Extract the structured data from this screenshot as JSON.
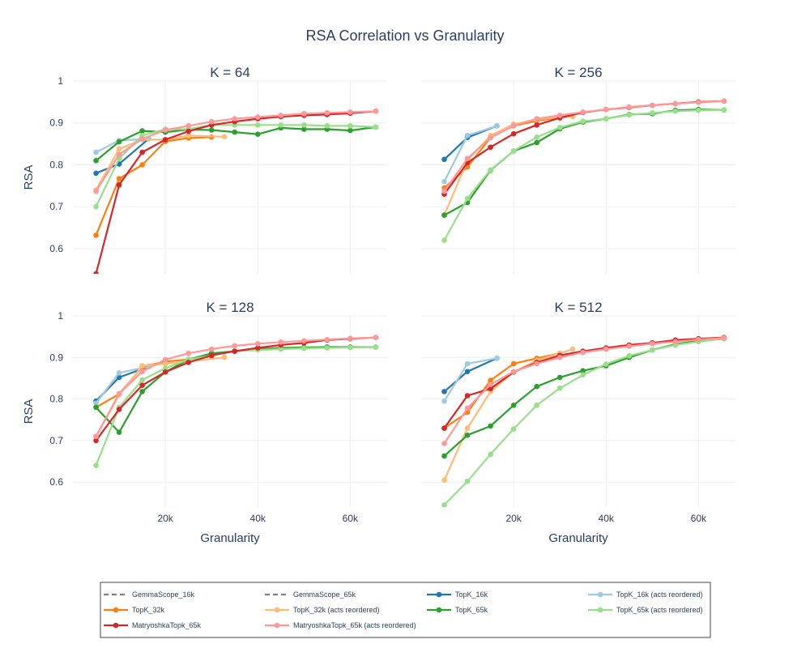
{
  "chart_data": {
    "type": "line",
    "title": "RSA Correlation vs Granularity",
    "xlabel": "Granularity",
    "ylabel": "RSA",
    "x_ticks": [
      20000,
      40000,
      60000
    ],
    "x_tick_labels": [
      "20k",
      "40k",
      "60k"
    ],
    "y_ticks": [
      0.6,
      0.7,
      0.8,
      0.9,
      1
    ],
    "y_tick_labels": [
      "0.6",
      "0.7",
      "0.8",
      "0.9",
      "1"
    ],
    "xlim": [
      0,
      68000
    ],
    "ylim": [
      0.54,
      1.0
    ],
    "legend": [
      {
        "name": "GemmaScope_16k",
        "color": "#7f7f7f",
        "style": "dash"
      },
      {
        "name": "GemmaScope_65k",
        "color": "#7f7f7f",
        "style": "dash"
      },
      {
        "name": "TopK_16k",
        "color": "#1f77b4",
        "style": "solid"
      },
      {
        "name": "TopK_16k (acts reordered)",
        "color": "#9ecae1",
        "style": "solid"
      },
      {
        "name": "TopK_32k",
        "color": "#ff7f0e",
        "style": "solid"
      },
      {
        "name": "TopK_32k (acts reordered)",
        "color": "#ffbb78",
        "style": "solid"
      },
      {
        "name": "TopK_65k",
        "color": "#2ca02c",
        "style": "solid"
      },
      {
        "name": "TopK_65k (acts reordered)",
        "color": "#98df8a",
        "style": "solid"
      },
      {
        "name": "MatryoshkaTopk_65k",
        "color": "#d62728",
        "style": "solid"
      },
      {
        "name": "MatryoshkaTopk_65k (acts reordered)",
        "color": "#ff9896",
        "style": "solid"
      }
    ],
    "panels": [
      {
        "title": "K = 64",
        "series": [
          {
            "name": "TopK_16k",
            "color": "#1f77b4",
            "x": [
              5000,
              10000,
              16384
            ],
            "y": [
              0.78,
              0.802,
              0.862
            ]
          },
          {
            "name": "TopK_16k (acts reordered)",
            "color": "#9ecae1",
            "x": [
              5000,
              10000,
              16384
            ],
            "y": [
              0.83,
              0.858,
              0.862
            ]
          },
          {
            "name": "TopK_32k",
            "color": "#ff7f0e",
            "x": [
              5000,
              10000,
              15000,
              20000,
              25000,
              30000
            ],
            "y": [
              0.632,
              0.767,
              0.8,
              0.856,
              0.864,
              0.866
            ]
          },
          {
            "name": "TopK_32k (acts reordered)",
            "color": "#ffbb78",
            "x": [
              5000,
              10000,
              15000,
              20000,
              25000,
              32768
            ],
            "y": [
              0.74,
              0.838,
              0.86,
              0.86,
              0.87,
              0.867
            ]
          },
          {
            "name": "TopK_65k",
            "color": "#2ca02c",
            "x": [
              5000,
              10000,
              15000,
              20000,
              25000,
              30000,
              35000,
              40000,
              45000,
              50000,
              55000,
              60000,
              65536
            ],
            "y": [
              0.81,
              0.855,
              0.881,
              0.878,
              0.884,
              0.883,
              0.878,
              0.873,
              0.888,
              0.885,
              0.885,
              0.882,
              0.89
            ]
          },
          {
            "name": "TopK_65k (acts reordered)",
            "color": "#98df8a",
            "x": [
              5000,
              10000,
              15000,
              20000,
              25000,
              30000,
              35000,
              40000,
              45000,
              50000,
              55000,
              60000,
              65536
            ],
            "y": [
              0.7,
              0.815,
              0.87,
              0.885,
              0.885,
              0.895,
              0.895,
              0.895,
              0.895,
              0.895,
              0.893,
              0.893,
              0.89
            ]
          },
          {
            "name": "MatryoshkaTopk_65k",
            "color": "#d62728",
            "x": [
              5000,
              10000,
              15000,
              20000,
              25000,
              30000,
              35000,
              40000,
              45000,
              50000,
              55000,
              60000,
              65536
            ],
            "y": [
              0.54,
              0.752,
              0.83,
              0.86,
              0.88,
              0.895,
              0.903,
              0.91,
              0.915,
              0.918,
              0.92,
              0.923,
              0.928
            ]
          },
          {
            "name": "MatryoshkaTopk_65k (acts reordered)",
            "color": "#ff9896",
            "x": [
              5000,
              10000,
              15000,
              20000,
              25000,
              30000,
              35000,
              40000,
              45000,
              50000,
              55000,
              60000,
              65536
            ],
            "y": [
              0.737,
              0.825,
              0.862,
              0.883,
              0.893,
              0.903,
              0.91,
              0.914,
              0.918,
              0.922,
              0.924,
              0.926,
              0.928
            ]
          }
        ]
      },
      {
        "title": "K = 256",
        "series": [
          {
            "name": "TopK_16k",
            "color": "#1f77b4",
            "x": [
              5000,
              10000,
              16384
            ],
            "y": [
              0.813,
              0.865,
              0.893
            ]
          },
          {
            "name": "TopK_16k (acts reordered)",
            "color": "#9ecae1",
            "x": [
              5000,
              10000,
              16384
            ],
            "y": [
              0.76,
              0.87,
              0.893
            ]
          },
          {
            "name": "TopK_32k",
            "color": "#ff7f0e",
            "x": [
              5000,
              10000,
              15000,
              20000,
              25000,
              30000
            ],
            "y": [
              0.745,
              0.795,
              0.865,
              0.893,
              0.905,
              0.913
            ]
          },
          {
            "name": "TopK_32k (acts reordered)",
            "color": "#ffbb78",
            "x": [
              5000,
              10000,
              15000,
              20000,
              25000,
              30000,
              32768
            ],
            "y": [
              0.68,
              0.81,
              0.87,
              0.897,
              0.908,
              0.915,
              0.915
            ]
          },
          {
            "name": "TopK_65k",
            "color": "#2ca02c",
            "x": [
              5000,
              10000,
              15000,
              20000,
              25000,
              30000,
              35000,
              40000,
              45000,
              50000,
              55000,
              60000,
              65536
            ],
            "y": [
              0.68,
              0.71,
              0.787,
              0.833,
              0.853,
              0.886,
              0.902,
              0.91,
              0.92,
              0.922,
              0.93,
              0.932,
              0.931
            ]
          },
          {
            "name": "TopK_65k (acts reordered)",
            "color": "#98df8a",
            "x": [
              5000,
              10000,
              15000,
              20000,
              25000,
              30000,
              35000,
              40000,
              45000,
              50000,
              55000,
              60000,
              65536
            ],
            "y": [
              0.62,
              0.72,
              0.788,
              0.833,
              0.866,
              0.889,
              0.904,
              0.91,
              0.919,
              0.924,
              0.928,
              0.93,
              0.931
            ]
          },
          {
            "name": "MatryoshkaTopk_65k",
            "color": "#d62728",
            "x": [
              5000,
              10000,
              15000,
              20000,
              25000,
              30000,
              35000,
              40000,
              45000,
              50000,
              55000,
              60000,
              65536
            ],
            "y": [
              0.73,
              0.805,
              0.842,
              0.874,
              0.895,
              0.912,
              0.925,
              0.932,
              0.937,
              0.942,
              0.946,
              0.95,
              0.952
            ]
          },
          {
            "name": "MatryoshkaTopk_65k (acts reordered)",
            "color": "#ff9896",
            "x": [
              5000,
              10000,
              15000,
              20000,
              25000,
              30000,
              35000,
              40000,
              45000,
              50000,
              55000,
              60000,
              65536
            ],
            "y": [
              0.737,
              0.815,
              0.865,
              0.893,
              0.91,
              0.918,
              0.926,
              0.932,
              0.938,
              0.942,
              0.946,
              0.949,
              0.952
            ]
          }
        ]
      },
      {
        "title": "K = 128",
        "series": [
          {
            "name": "TopK_16k",
            "color": "#1f77b4",
            "x": [
              5000,
              10000,
              16384
            ],
            "y": [
              0.795,
              0.852,
              0.878
            ]
          },
          {
            "name": "TopK_16k (acts reordered)",
            "color": "#9ecae1",
            "x": [
              5000,
              10000,
              16384
            ],
            "y": [
              0.79,
              0.863,
              0.878
            ]
          },
          {
            "name": "TopK_32k",
            "color": "#ff7f0e",
            "x": [
              5000,
              10000,
              15000,
              20000,
              25000,
              30000
            ],
            "y": [
              0.78,
              0.812,
              0.878,
              0.89,
              0.895,
              0.903
            ]
          },
          {
            "name": "TopK_32k (acts reordered)",
            "color": "#ffbb78",
            "x": [
              5000,
              10000,
              15000,
              20000,
              25000,
              32768
            ],
            "y": [
              0.71,
              0.81,
              0.88,
              0.885,
              0.89,
              0.9
            ]
          },
          {
            "name": "TopK_65k",
            "color": "#2ca02c",
            "x": [
              5000,
              10000,
              15000,
              20000,
              25000,
              30000,
              35000,
              40000,
              45000,
              50000,
              55000,
              60000,
              65536
            ],
            "y": [
              0.78,
              0.72,
              0.818,
              0.865,
              0.895,
              0.91,
              0.915,
              0.92,
              0.923,
              0.924,
              0.925,
              0.925,
              0.925
            ]
          },
          {
            "name": "TopK_65k (acts reordered)",
            "color": "#98df8a",
            "x": [
              5000,
              10000,
              15000,
              20000,
              25000,
              30000,
              35000,
              40000,
              45000,
              50000,
              55000,
              60000,
              65536
            ],
            "y": [
              0.64,
              0.78,
              0.846,
              0.874,
              0.895,
              0.905,
              0.915,
              0.918,
              0.92,
              0.922,
              0.923,
              0.924,
              0.925
            ]
          },
          {
            "name": "MatryoshkaTopk_65k",
            "color": "#d62728",
            "x": [
              5000,
              10000,
              15000,
              20000,
              25000,
              30000,
              35000,
              40000,
              45000,
              50000,
              55000,
              60000,
              65536
            ],
            "y": [
              0.7,
              0.775,
              0.833,
              0.865,
              0.888,
              0.905,
              0.915,
              0.923,
              0.93,
              0.935,
              0.942,
              0.945,
              0.948
            ]
          },
          {
            "name": "MatryoshkaTopk_65k (acts reordered)",
            "color": "#ff9896",
            "x": [
              5000,
              10000,
              15000,
              20000,
              25000,
              30000,
              35000,
              40000,
              45000,
              50000,
              55000,
              60000,
              65536
            ],
            "y": [
              0.71,
              0.813,
              0.866,
              0.895,
              0.91,
              0.92,
              0.928,
              0.933,
              0.937,
              0.94,
              0.943,
              0.946,
              0.948
            ]
          }
        ]
      },
      {
        "title": "K = 512",
        "series": [
          {
            "name": "TopK_16k",
            "color": "#1f77b4",
            "x": [
              5000,
              10000,
              16384
            ],
            "y": [
              0.818,
              0.866,
              0.898
            ]
          },
          {
            "name": "TopK_16k (acts reordered)",
            "color": "#9ecae1",
            "x": [
              5000,
              10000,
              16384
            ],
            "y": [
              0.795,
              0.885,
              0.898
            ]
          },
          {
            "name": "TopK_32k",
            "color": "#ff7f0e",
            "x": [
              5000,
              10000,
              15000,
              20000,
              25000,
              30000
            ],
            "y": [
              0.73,
              0.768,
              0.845,
              0.885,
              0.898,
              0.91
            ]
          },
          {
            "name": "TopK_32k (acts reordered)",
            "color": "#ffbb78",
            "x": [
              5000,
              10000,
              15000,
              20000,
              25000,
              30000,
              32768
            ],
            "y": [
              0.605,
              0.73,
              0.818,
              0.865,
              0.893,
              0.91,
              0.92
            ]
          },
          {
            "name": "TopK_65k",
            "color": "#2ca02c",
            "x": [
              5000,
              10000,
              15000,
              20000,
              25000,
              30000,
              35000,
              40000,
              45000,
              50000,
              55000,
              60000,
              65536
            ],
            "y": [
              0.663,
              0.713,
              0.735,
              0.785,
              0.83,
              0.852,
              0.868,
              0.88,
              0.9,
              0.918,
              0.932,
              0.94,
              0.945
            ]
          },
          {
            "name": "TopK_65k (acts reordered)",
            "color": "#98df8a",
            "x": [
              5000,
              10000,
              15000,
              20000,
              25000,
              30000,
              35000,
              40000,
              45000,
              50000,
              55000,
              60000,
              65536
            ],
            "y": [
              0.545,
              0.602,
              0.667,
              0.728,
              0.785,
              0.826,
              0.858,
              0.884,
              0.904,
              0.918,
              0.93,
              0.938,
              0.945
            ]
          },
          {
            "name": "MatryoshkaTopk_65k",
            "color": "#d62728",
            "x": [
              5000,
              10000,
              15000,
              20000,
              25000,
              30000,
              35000,
              40000,
              45000,
              50000,
              55000,
              60000,
              65536
            ],
            "y": [
              0.73,
              0.808,
              0.825,
              0.865,
              0.888,
              0.905,
              0.915,
              0.923,
              0.93,
              0.935,
              0.942,
              0.945,
              0.948
            ]
          },
          {
            "name": "MatryoshkaTopk_65k (acts reordered)",
            "color": "#ff9896",
            "x": [
              5000,
              10000,
              15000,
              20000,
              25000,
              30000,
              35000,
              40000,
              45000,
              50000,
              55000,
              60000,
              65536
            ],
            "y": [
              0.693,
              0.778,
              0.835,
              0.866,
              0.885,
              0.9,
              0.912,
              0.92,
              0.927,
              0.933,
              0.938,
              0.943,
              0.947
            ]
          }
        ]
      }
    ]
  }
}
